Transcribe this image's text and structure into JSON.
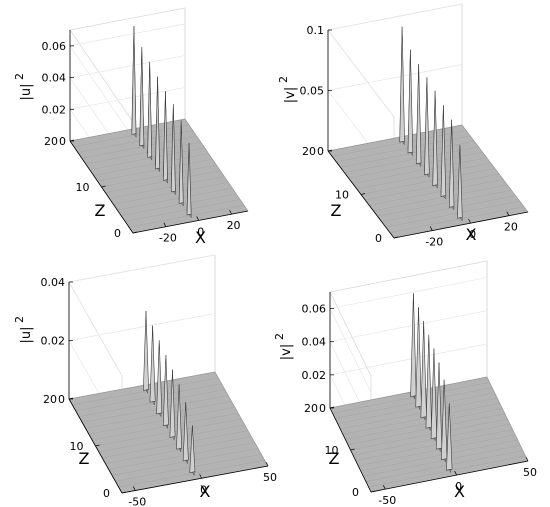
{
  "chart_data": [
    {
      "type": "surface",
      "panel": "top-left",
      "xlabel": "X",
      "ylabel": "Z",
      "zlabel": "|u|",
      "zlabel_sup": "2",
      "xlim": [
        -40,
        30
      ],
      "ylim": [
        0,
        20
      ],
      "zlim": [
        0,
        0.07
      ],
      "xticks": [
        "-20",
        "0",
        "20"
      ],
      "xtick_values": [
        -20,
        0,
        20
      ],
      "yticks": [
        "0",
        "10",
        "20"
      ],
      "ytick_values": [
        0,
        10,
        20
      ],
      "zticks": [
        "0",
        "0.02",
        "0.04",
        "0.06"
      ],
      "ztick_values": [
        0,
        0.02,
        0.04,
        0.06
      ],
      "peaks": {
        "x_position": -3,
        "z": [
          1.5,
          4.0,
          6.5,
          9.0,
          11.5,
          14.0,
          16.5,
          19.0
        ],
        "height": [
          0.045,
          0.052,
          0.055,
          0.056,
          0.058,
          0.06,
          0.062,
          0.068
        ]
      }
    },
    {
      "type": "surface",
      "panel": "top-right",
      "xlabel": "X",
      "ylabel": "Z",
      "zlabel": "|v|",
      "zlabel_sup": "2",
      "xlim": [
        -40,
        30
      ],
      "ylim": [
        0,
        20
      ],
      "zlim": [
        0,
        0.1
      ],
      "xticks": [
        "-20",
        "0",
        "20"
      ],
      "xtick_values": [
        -20,
        0,
        20
      ],
      "yticks": [
        "0",
        "10",
        "20"
      ],
      "ytick_values": [
        0,
        10,
        20
      ],
      "zticks": [
        "0",
        "0.05",
        "0.1"
      ],
      "ztick_values": [
        0,
        0.05,
        0.1
      ],
      "peaks": {
        "x_position": -3,
        "z": [
          1.5,
          4.0,
          6.5,
          9.0,
          11.5,
          14.0,
          16.5,
          19.0
        ],
        "height": [
          0.06,
          0.072,
          0.075,
          0.078,
          0.08,
          0.082,
          0.085,
          0.095
        ]
      }
    },
    {
      "type": "surface",
      "panel": "bottom-left",
      "xlabel": "X",
      "ylabel": "Z",
      "zlabel": "|u|",
      "zlabel_sup": "2",
      "xlim": [
        -60,
        50
      ],
      "ylim": [
        0,
        20
      ],
      "zlim": [
        0,
        0.04
      ],
      "xticks": [
        "-50",
        "0",
        "50"
      ],
      "xtick_values": [
        -50,
        0,
        50
      ],
      "yticks": [
        "0",
        "10",
        "20"
      ],
      "ytick_values": [
        0,
        10,
        20
      ],
      "zticks": [
        "0",
        "0.02",
        "0.04"
      ],
      "ztick_values": [
        0,
        0.02,
        0.04
      ],
      "peaks": {
        "x_position": -4,
        "z": [
          1.5,
          4.0,
          6.5,
          9.0,
          11.5,
          14.0,
          16.5,
          19.0
        ],
        "height": [
          0.016,
          0.02,
          0.022,
          0.023,
          0.024,
          0.025,
          0.026,
          0.027
        ]
      }
    },
    {
      "type": "surface",
      "panel": "bottom-right",
      "xlabel": "X",
      "ylabel": "Z",
      "zlabel": "|v|",
      "zlabel_sup": "2",
      "xlim": [
        -60,
        50
      ],
      "ylim": [
        0,
        20
      ],
      "zlim": [
        0,
        0.07
      ],
      "xticks": [
        "-50",
        "0",
        "50"
      ],
      "xtick_values": [
        -50,
        0,
        50
      ],
      "yticks": [
        "0",
        "10",
        "20"
      ],
      "ytick_values": [
        0,
        10,
        20
      ],
      "zticks": [
        "0",
        "0.02",
        "0.04",
        "0.06"
      ],
      "ztick_values": [
        0,
        0.02,
        0.04,
        0.06
      ],
      "peaks": {
        "x_position": -3,
        "z": [
          1.5,
          4.0,
          6.5,
          9.0,
          11.5,
          14.0,
          16.5,
          19.0
        ],
        "height": [
          0.04,
          0.048,
          0.052,
          0.054,
          0.056,
          0.058,
          0.06,
          0.062
        ]
      }
    }
  ]
}
